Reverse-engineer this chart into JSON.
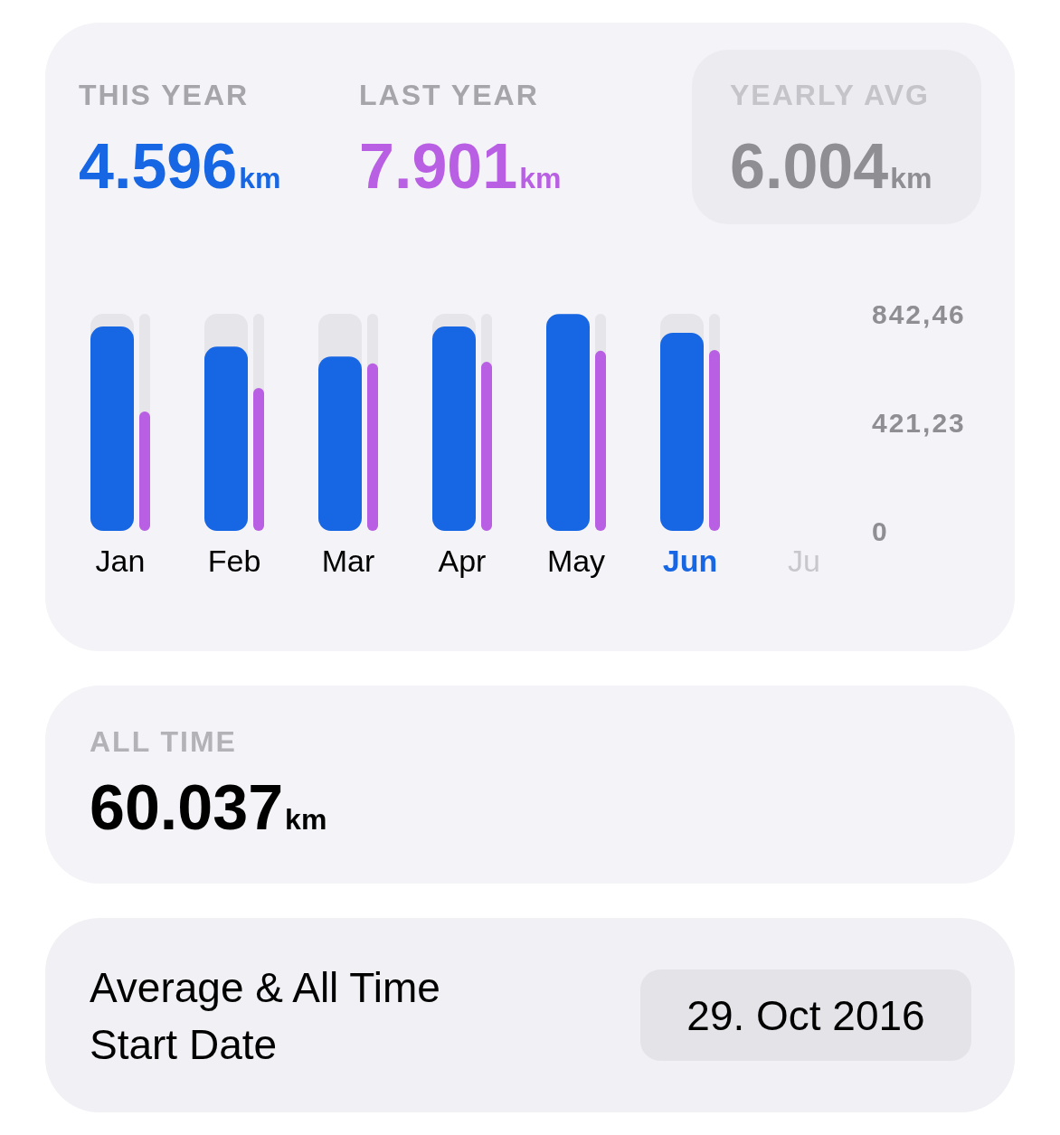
{
  "chart_data": [
    {
      "type": "bar",
      "categories": [
        "Jan",
        "Feb",
        "Mar",
        "Apr",
        "May",
        "Jun",
        "Ju"
      ],
      "series": [
        {
          "color": "#1766e4",
          "values": [
            793,
            715,
            677,
            793,
            842,
            769,
            null
          ]
        },
        {
          "color": "#b95fe3",
          "values": [
            463,
            555,
            650,
            656,
            699,
            702,
            null
          ]
        }
      ],
      "ylim": [
        0,
        842.46
      ],
      "yticks": [
        0,
        {
          "value": 421.23,
          "label": "421,23"
        },
        {
          "value": 842.46,
          "label": "842,46"
        }
      ],
      "annotations": [
        "THIS YEAR",
        "4.596km",
        "LAST YEAR",
        "7.901km",
        "YEARLY AVG",
        "6.004km"
      ]
    },
    {
      "type": "other",
      "title": "ALL TIME",
      "annotations": [
        "60.037km"
      ]
    },
    {
      "type": "other",
      "title": "Average & All Time Start Date",
      "annotations": [
        "29. Oct 2016"
      ]
    }
  ]
}
